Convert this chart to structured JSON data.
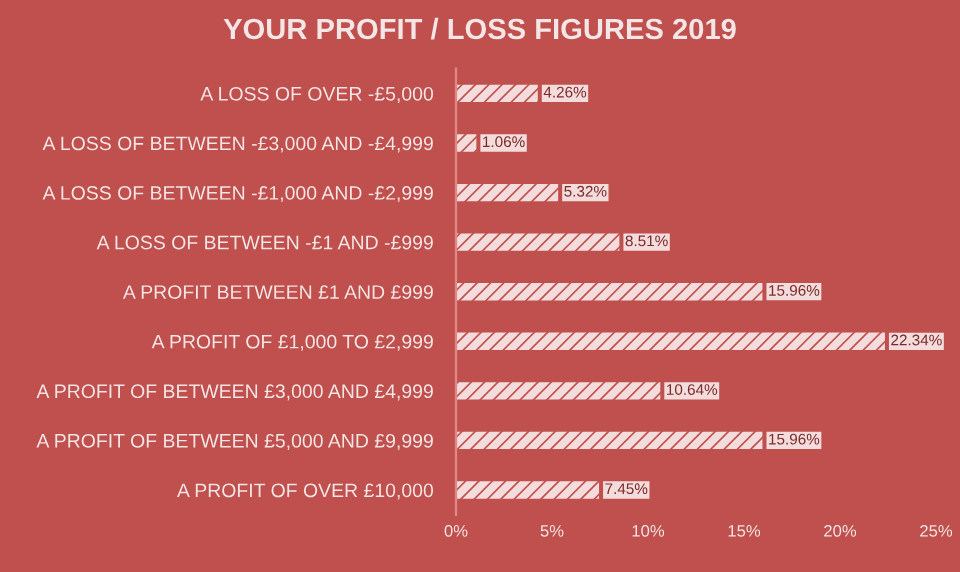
{
  "chart_data": {
    "type": "bar",
    "orientation": "horizontal",
    "title": "YOUR PROFIT / LOSS FIGURES 2019",
    "categories": [
      "A LOSS OF OVER -£5,000",
      "A LOSS OF BETWEEN -£3,000 AND -£4,999",
      "A LOSS OF BETWEEN -£1,000 AND -£2,999",
      "A LOSS OF BETWEEN -£1 AND -£999",
      "A PROFIT BETWEEN £1 AND £999",
      "A PROFIT OF £1,000 TO £2,999",
      "A PROFIT OF BETWEEN £3,000 AND £4,999",
      "A PROFIT OF BETWEEN £5,000 AND £9,999",
      "A PROFIT OF OVER £10,000"
    ],
    "values": [
      4.26,
      1.06,
      5.32,
      8.51,
      15.96,
      22.34,
      10.64,
      15.96,
      7.45
    ],
    "value_labels": [
      "4.26%",
      "1.06%",
      "5.32%",
      "8.51%",
      "15.96%",
      "22.34%",
      "10.64%",
      "15.96%",
      "7.45%"
    ],
    "color": "#f4dcdc",
    "xlim": [
      0,
      25
    ],
    "xticks": [
      {
        "value": 0,
        "label": "0%"
      },
      {
        "value": 5,
        "label": "5%"
      },
      {
        "value": 10,
        "label": "10%"
      },
      {
        "value": 15,
        "label": "15%"
      },
      {
        "value": 20,
        "label": "20%"
      },
      {
        "value": 25,
        "label": "25%"
      }
    ],
    "grid": false,
    "legend": false
  }
}
